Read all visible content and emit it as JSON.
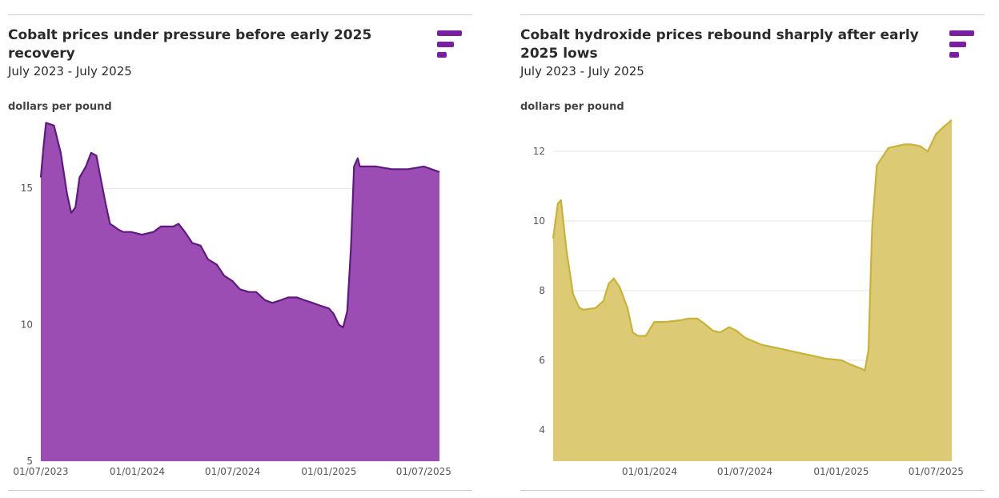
{
  "charts": [
    {
      "title": "Cobalt prices under pressure before early 2025 recovery",
      "subtitle": "July 2023 - July 2025",
      "unit_label": "dollars per pound",
      "logo_icon": "bars-logo-icon",
      "color_fill": "#9b4db3",
      "color_line": "#5e1a7e"
    },
    {
      "title": "Cobalt hydroxide prices rebound sharply after early 2025 lows",
      "subtitle": "July 2023 - July 2025",
      "unit_label": "dollars per pound",
      "logo_icon": "bars-logo-icon",
      "color_fill": "#dccb74",
      "color_line": "#c9b336"
    }
  ],
  "chart_data": [
    {
      "type": "area",
      "title": "Cobalt prices under pressure before early 2025 recovery",
      "subtitle": "July 2023 - July 2025",
      "ylabel": "dollars per pound",
      "ylim": [
        5,
        17.5
      ],
      "yticks": [
        5,
        10,
        15
      ],
      "xlim": [
        "2023-07-01",
        "2025-07-31"
      ],
      "xticks": [
        "2023-07-01",
        "2024-01-01",
        "2024-07-01",
        "2025-01-01",
        "2025-07-01"
      ],
      "xtick_labels": [
        "01/07/2023",
        "01/01/2024",
        "01/07/2024",
        "01/01/2025",
        "01/07/2025"
      ],
      "grid": "horizontal",
      "x": [
        "2023-07-01",
        "2023-07-06",
        "2023-07-11",
        "2023-07-26",
        "2023-08-08",
        "2023-08-20",
        "2023-08-28",
        "2023-09-05",
        "2023-09-13",
        "2023-09-25",
        "2023-10-05",
        "2023-10-15",
        "2023-10-22",
        "2023-11-01",
        "2023-11-10",
        "2023-11-18",
        "2023-11-25",
        "2023-12-05",
        "2023-12-20",
        "2024-01-10",
        "2024-02-01",
        "2024-02-15",
        "2024-03-01",
        "2024-03-10",
        "2024-03-20",
        "2024-04-01",
        "2024-04-15",
        "2024-05-01",
        "2024-05-15",
        "2024-06-01",
        "2024-06-15",
        "2024-07-01",
        "2024-07-15",
        "2024-08-01",
        "2024-08-15",
        "2024-09-01",
        "2024-09-15",
        "2024-10-01",
        "2024-10-15",
        "2024-11-01",
        "2024-11-15",
        "2024-12-01",
        "2024-12-15",
        "2025-01-01",
        "2025-01-10",
        "2025-01-20",
        "2025-01-28",
        "2025-02-05",
        "2025-02-12",
        "2025-02-18",
        "2025-02-25",
        "2025-03-01",
        "2025-03-10",
        "2025-04-01",
        "2025-05-01",
        "2025-06-01",
        "2025-07-01",
        "2025-07-31"
      ],
      "series": [
        {
          "values": [
            15.4,
            16.5,
            17.4,
            17.3,
            16.3,
            14.8,
            14.1,
            14.3,
            15.4,
            15.8,
            16.3,
            16.2,
            15.5,
            14.5,
            13.7,
            13.6,
            13.5,
            13.4,
            13.4,
            13.3,
            13.4,
            13.6,
            13.6,
            13.6,
            13.7,
            13.4,
            13.0,
            12.9,
            12.4,
            12.2,
            11.8,
            11.6,
            11.3,
            11.2,
            11.2,
            10.9,
            10.8,
            10.9,
            11.0,
            11.0,
            10.9,
            10.8,
            10.7,
            10.6,
            10.4,
            10.0,
            9.9,
            10.5,
            12.8,
            15.8,
            16.1,
            15.8,
            15.8,
            15.8,
            15.7,
            15.7,
            15.8,
            15.6
          ]
        }
      ]
    },
    {
      "type": "area",
      "title": "Cobalt hydroxide prices rebound sharply after early 2025 lows",
      "subtitle": "July 2023 - July 2025",
      "ylabel": "dollars per pound",
      "ylim": [
        3.1,
        12.9
      ],
      "yticks": [
        4,
        6,
        8,
        10,
        12
      ],
      "xlim": [
        "2023-07-01",
        "2025-07-31"
      ],
      "xticks": [
        "2024-01-01",
        "2024-07-01",
        "2025-01-01",
        "2025-07-01"
      ],
      "xtick_labels": [
        "01/01/2024",
        "01/07/2024",
        "01/01/2025",
        "01/07/2025"
      ],
      "grid": "horizontal",
      "x": [
        "2023-07-01",
        "2023-07-10",
        "2023-07-16",
        "2023-07-26",
        "2023-08-08",
        "2023-08-20",
        "2023-08-28",
        "2023-09-20",
        "2023-10-05",
        "2023-10-15",
        "2023-10-25",
        "2023-11-05",
        "2023-11-20",
        "2023-11-30",
        "2023-12-10",
        "2023-12-25",
        "2024-01-10",
        "2024-02-01",
        "2024-03-01",
        "2024-03-15",
        "2024-04-01",
        "2024-04-15",
        "2024-05-01",
        "2024-05-15",
        "2024-06-01",
        "2024-06-15",
        "2024-07-01",
        "2024-08-01",
        "2024-09-01",
        "2024-10-01",
        "2024-11-01",
        "2024-12-01",
        "2025-01-01",
        "2025-01-15",
        "2025-02-01",
        "2025-02-10",
        "2025-02-15",
        "2025-02-22",
        "2025-03-01",
        "2025-03-10",
        "2025-04-01",
        "2025-05-01",
        "2025-05-15",
        "2025-06-01",
        "2025-06-15",
        "2025-07-01",
        "2025-07-15",
        "2025-07-31"
      ],
      "series": [
        {
          "values": [
            9.5,
            10.5,
            10.6,
            9.2,
            7.9,
            7.5,
            7.45,
            7.5,
            7.7,
            8.2,
            8.35,
            8.1,
            7.5,
            6.8,
            6.7,
            6.7,
            7.1,
            7.1,
            7.15,
            7.2,
            7.2,
            7.05,
            6.85,
            6.8,
            6.95,
            6.85,
            6.65,
            6.45,
            6.35,
            6.25,
            6.15,
            6.05,
            6.0,
            5.9,
            5.8,
            5.75,
            5.7,
            6.3,
            9.8,
            11.6,
            12.1,
            12.2,
            12.2,
            12.15,
            12.0,
            12.5,
            12.7,
            12.9
          ]
        }
      ]
    }
  ]
}
